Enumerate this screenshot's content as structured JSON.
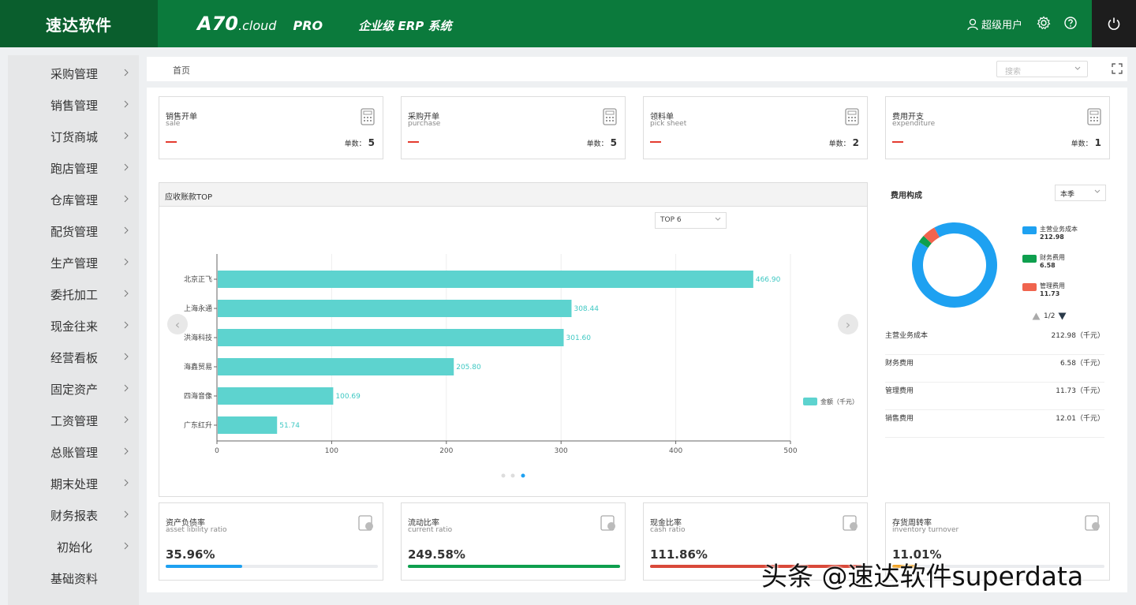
{
  "header": {
    "brand": "速达软件",
    "logo_main": "A70",
    "logo_cloud": ".cloud",
    "logo_pro": "PRO",
    "logo_sub": "企业级 ERP 系统",
    "user": "超级用户"
  },
  "sidebar": {
    "items": [
      {
        "label": "采购管理"
      },
      {
        "label": "销售管理"
      },
      {
        "label": "订货商城"
      },
      {
        "label": "跑店管理"
      },
      {
        "label": "仓库管理"
      },
      {
        "label": "配货管理"
      },
      {
        "label": "生产管理"
      },
      {
        "label": "委托加工"
      },
      {
        "label": "现金往来"
      },
      {
        "label": "经营看板"
      },
      {
        "label": "固定资产"
      },
      {
        "label": "工资管理"
      },
      {
        "label": "总账管理"
      },
      {
        "label": "期末处理"
      },
      {
        "label": "财务报表"
      },
      {
        "label": "初始化"
      },
      {
        "label": "基础资料"
      }
    ]
  },
  "breadcrumb": "首页",
  "search": {
    "placeholder": "搜索"
  },
  "kpis": [
    {
      "title": "销售开单",
      "sub": "sale",
      "count_label": "单数：",
      "count": "5"
    },
    {
      "title": "采购开单",
      "sub": "purchase",
      "count_label": "单数：",
      "count": "5"
    },
    {
      "title": "领料单",
      "sub": "pick sheet",
      "count_label": "单数：",
      "count": "2"
    },
    {
      "title": "费用开支",
      "sub": "expenditure",
      "count_label": "单数：",
      "count": "1"
    }
  ],
  "receivables": {
    "title": "应收账款TOP",
    "top_select": "TOP 6"
  },
  "chart_data": {
    "type": "bar",
    "orientation": "horizontal",
    "categories": [
      "北京正飞",
      "上海永通",
      "洪海科技",
      "海鑫贸易",
      "四海音像",
      "广东红升"
    ],
    "series": [
      {
        "name": "金额（千元）",
        "values": [
          466.9,
          308.44,
          301.6,
          205.8,
          100.69,
          51.74
        ],
        "color": "#5dd3cf"
      }
    ],
    "xlim": [
      0,
      500
    ],
    "xticks": [
      0,
      100,
      200,
      300,
      400,
      500
    ],
    "legend": "right"
  },
  "expense": {
    "title": "费用构成",
    "period": "本季",
    "page": "1/2",
    "legend": [
      {
        "name": "主营业务成本",
        "value": "212.98",
        "color": "#1ea1f1"
      },
      {
        "name": "财务费用",
        "value": "6.58",
        "color": "#0e9f4e"
      },
      {
        "name": "管理费用",
        "value": "11.73",
        "color": "#f0644e"
      }
    ],
    "donut": [
      212.98,
      6.58,
      11.73
    ],
    "rows": [
      {
        "name": "主营业务成本",
        "value": "212.98（千元）"
      },
      {
        "name": "财务费用",
        "value": "6.58（千元）"
      },
      {
        "name": "管理费用",
        "value": "11.73（千元）"
      },
      {
        "name": "销售费用",
        "value": "12.01（千元）"
      }
    ]
  },
  "ratios": [
    {
      "title": "资产负债率",
      "sub": "asset libility ratio",
      "value": "35.96%",
      "fill": 0.3596,
      "color": "#1ea1f1"
    },
    {
      "title": "流动比率",
      "sub": "current ratio",
      "value": "249.58%",
      "fill": 1.0,
      "color": "#0e9f4e"
    },
    {
      "title": "现金比率",
      "sub": "cash ratio",
      "value": "111.86%",
      "fill": 1.0,
      "color": "#d9493a"
    },
    {
      "title": "存货周转率",
      "sub": "inventory turnover",
      "value": "11.01%",
      "fill": 0.11,
      "color": "#f0a020"
    }
  ],
  "watermark": "头条 @速达软件superdata"
}
